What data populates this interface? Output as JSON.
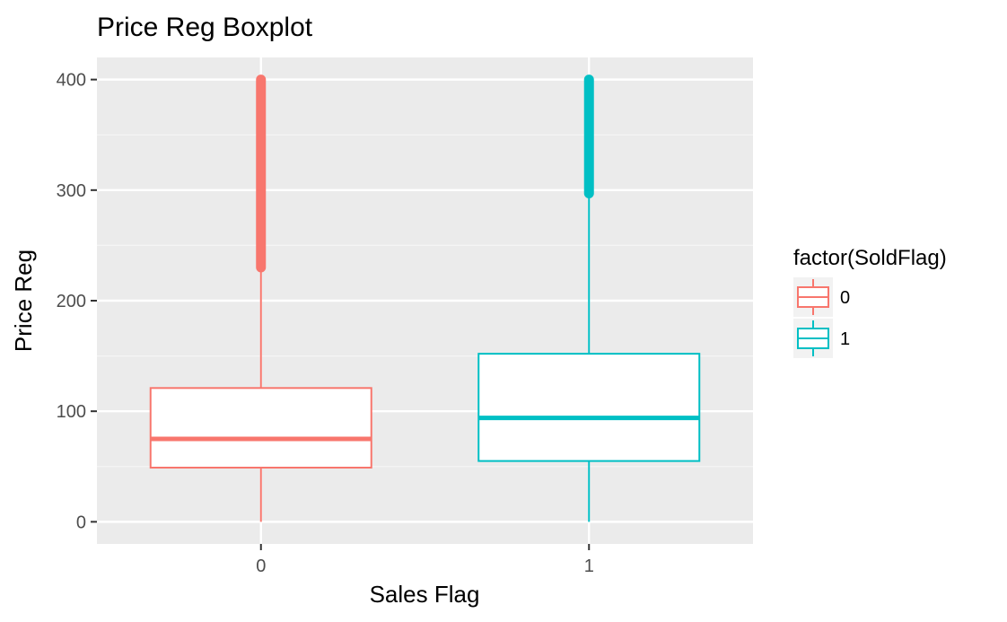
{
  "chart_data": {
    "type": "boxplot",
    "title": "Price Reg Boxplot",
    "xlabel": "Sales Flag",
    "ylabel": "Price Reg",
    "categories": [
      "0",
      "1"
    ],
    "ylim": [
      -20,
      420
    ],
    "yticks": [
      0,
      100,
      200,
      300,
      400
    ],
    "grid": true,
    "legend": {
      "title": "factor(SoldFlag)",
      "placement": "right",
      "entries": [
        "0",
        "1"
      ]
    },
    "series": [
      {
        "category": "0",
        "color": "#F8766D",
        "whisker_low": 0,
        "q1": 49,
        "median": 75,
        "q3": 121,
        "whisker_high": 230,
        "outliers_from": 230,
        "outliers_to": 400
      },
      {
        "category": "1",
        "color": "#00BFC4",
        "whisker_low": 0,
        "q1": 55,
        "median": 94,
        "q3": 152,
        "whisker_high": 297,
        "outliers_from": 297,
        "outliers_to": 400
      }
    ]
  }
}
